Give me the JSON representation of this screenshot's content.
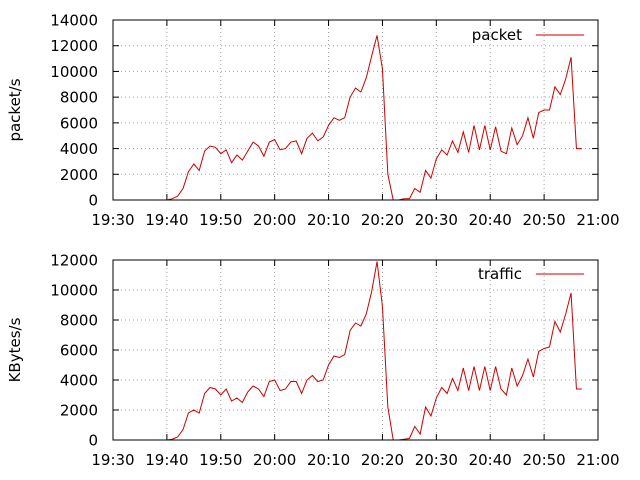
{
  "chart_data": [
    {
      "type": "line",
      "ylabel": "packet/s",
      "xlabel": "",
      "ylim": [
        0,
        14000
      ],
      "xlim": [
        "19:30",
        "21:00"
      ],
      "x_ticks": [
        "19:30",
        "19:40",
        "19:50",
        "20:00",
        "20:10",
        "20:20",
        "20:30",
        "20:40",
        "20:50",
        "21:00"
      ],
      "y_ticks": [
        "0",
        "2000",
        "4000",
        "6000",
        "8000",
        "10000",
        "12000",
        "14000"
      ],
      "grid": true,
      "legend_position": "top-right",
      "series_color": "#cc0000",
      "series": [
        {
          "name": "packet",
          "x": [
            "19:40",
            "19:41",
            "19:42",
            "19:43",
            "19:44",
            "19:45",
            "19:46",
            "19:47",
            "19:48",
            "19:49",
            "19:50",
            "19:51",
            "19:52",
            "19:53",
            "19:54",
            "19:55",
            "19:56",
            "19:57",
            "19:58",
            "19:59",
            "20:00",
            "20:01",
            "20:02",
            "20:03",
            "20:04",
            "20:05",
            "20:06",
            "20:07",
            "20:08",
            "20:09",
            "20:10",
            "20:11",
            "20:12",
            "20:13",
            "20:14",
            "20:15",
            "20:16",
            "20:17",
            "20:18",
            "20:19",
            "20:20",
            "20:21",
            "20:22",
            "20:23",
            "20:24",
            "20:25",
            "20:26",
            "20:27",
            "20:28",
            "20:29",
            "20:30",
            "20:31",
            "20:32",
            "20:33",
            "20:34",
            "20:35",
            "20:36",
            "20:37",
            "20:38",
            "20:39",
            "20:40",
            "20:41",
            "20:42",
            "20:43",
            "20:44",
            "20:45",
            "20:46",
            "20:47",
            "20:48",
            "20:49",
            "20:50",
            "20:51",
            "20:52",
            "20:53",
            "20:54",
            "20:55",
            "20:56",
            "20:57"
          ],
          "values": [
            0,
            100,
            300,
            900,
            2200,
            2800,
            2300,
            3800,
            4200,
            4100,
            3600,
            3900,
            2900,
            3500,
            3100,
            3800,
            4500,
            4200,
            3400,
            4500,
            4700,
            3900,
            4000,
            4500,
            4600,
            3600,
            4800,
            5200,
            4600,
            4900,
            5800,
            6400,
            6200,
            6400,
            8000,
            8700,
            8400,
            9500,
            11200,
            12800,
            10200,
            2000,
            0,
            0,
            100,
            100,
            900,
            600,
            2300,
            1700,
            3200,
            3900,
            3500,
            4600,
            3700,
            5300,
            3700,
            5800,
            3900,
            5800,
            3900,
            5700,
            3800,
            3600,
            5600,
            4300,
            5000,
            6400,
            4800,
            6800,
            7000,
            7000,
            8800,
            8200,
            9400,
            11100,
            4000,
            4000
          ]
        }
      ]
    },
    {
      "type": "line",
      "ylabel": "KBytes/s",
      "xlabel": "",
      "ylim": [
        0,
        12000
      ],
      "xlim": [
        "19:30",
        "21:00"
      ],
      "x_ticks": [
        "19:30",
        "19:40",
        "19:50",
        "20:00",
        "20:10",
        "20:20",
        "20:30",
        "20:40",
        "20:50",
        "21:00"
      ],
      "y_ticks": [
        "0",
        "2000",
        "4000",
        "6000",
        "8000",
        "10000",
        "12000"
      ],
      "grid": true,
      "legend_position": "top-right",
      "series_color": "#cc0000",
      "series": [
        {
          "name": "traffic",
          "x": [
            "19:40",
            "19:41",
            "19:42",
            "19:43",
            "19:44",
            "19:45",
            "19:46",
            "19:47",
            "19:48",
            "19:49",
            "19:50",
            "19:51",
            "19:52",
            "19:53",
            "19:54",
            "19:55",
            "19:56",
            "19:57",
            "19:58",
            "19:59",
            "20:00",
            "20:01",
            "20:02",
            "20:03",
            "20:04",
            "20:05",
            "20:06",
            "20:07",
            "20:08",
            "20:09",
            "20:10",
            "20:11",
            "20:12",
            "20:13",
            "20:14",
            "20:15",
            "20:16",
            "20:17",
            "20:18",
            "20:19",
            "20:20",
            "20:21",
            "20:22",
            "20:23",
            "20:24",
            "20:25",
            "20:26",
            "20:27",
            "20:28",
            "20:29",
            "20:30",
            "20:31",
            "20:32",
            "20:33",
            "20:34",
            "20:35",
            "20:36",
            "20:37",
            "20:38",
            "20:39",
            "20:40",
            "20:41",
            "20:42",
            "20:43",
            "20:44",
            "20:45",
            "20:46",
            "20:47",
            "20:48",
            "20:49",
            "20:50",
            "20:51",
            "20:52",
            "20:53",
            "20:54",
            "20:55",
            "20:56",
            "20:57"
          ],
          "values": [
            0,
            50,
            200,
            700,
            1800,
            2000,
            1800,
            3100,
            3500,
            3400,
            3000,
            3400,
            2600,
            2800,
            2500,
            3200,
            3600,
            3400,
            2900,
            3900,
            4000,
            3300,
            3400,
            3900,
            3900,
            3100,
            4000,
            4300,
            3900,
            4000,
            5000,
            5600,
            5500,
            5700,
            7300,
            7800,
            7600,
            8400,
            9900,
            11900,
            8900,
            2200,
            0,
            0,
            50,
            100,
            900,
            400,
            2200,
            1600,
            2800,
            3500,
            3100,
            4100,
            3300,
            4800,
            3300,
            4900,
            3300,
            4900,
            3300,
            4900,
            3400,
            3000,
            4800,
            3600,
            4300,
            5400,
            4200,
            5900,
            6100,
            6200,
            7900,
            7200,
            8400,
            9800,
            3400,
            3400
          ]
        }
      ]
    }
  ]
}
